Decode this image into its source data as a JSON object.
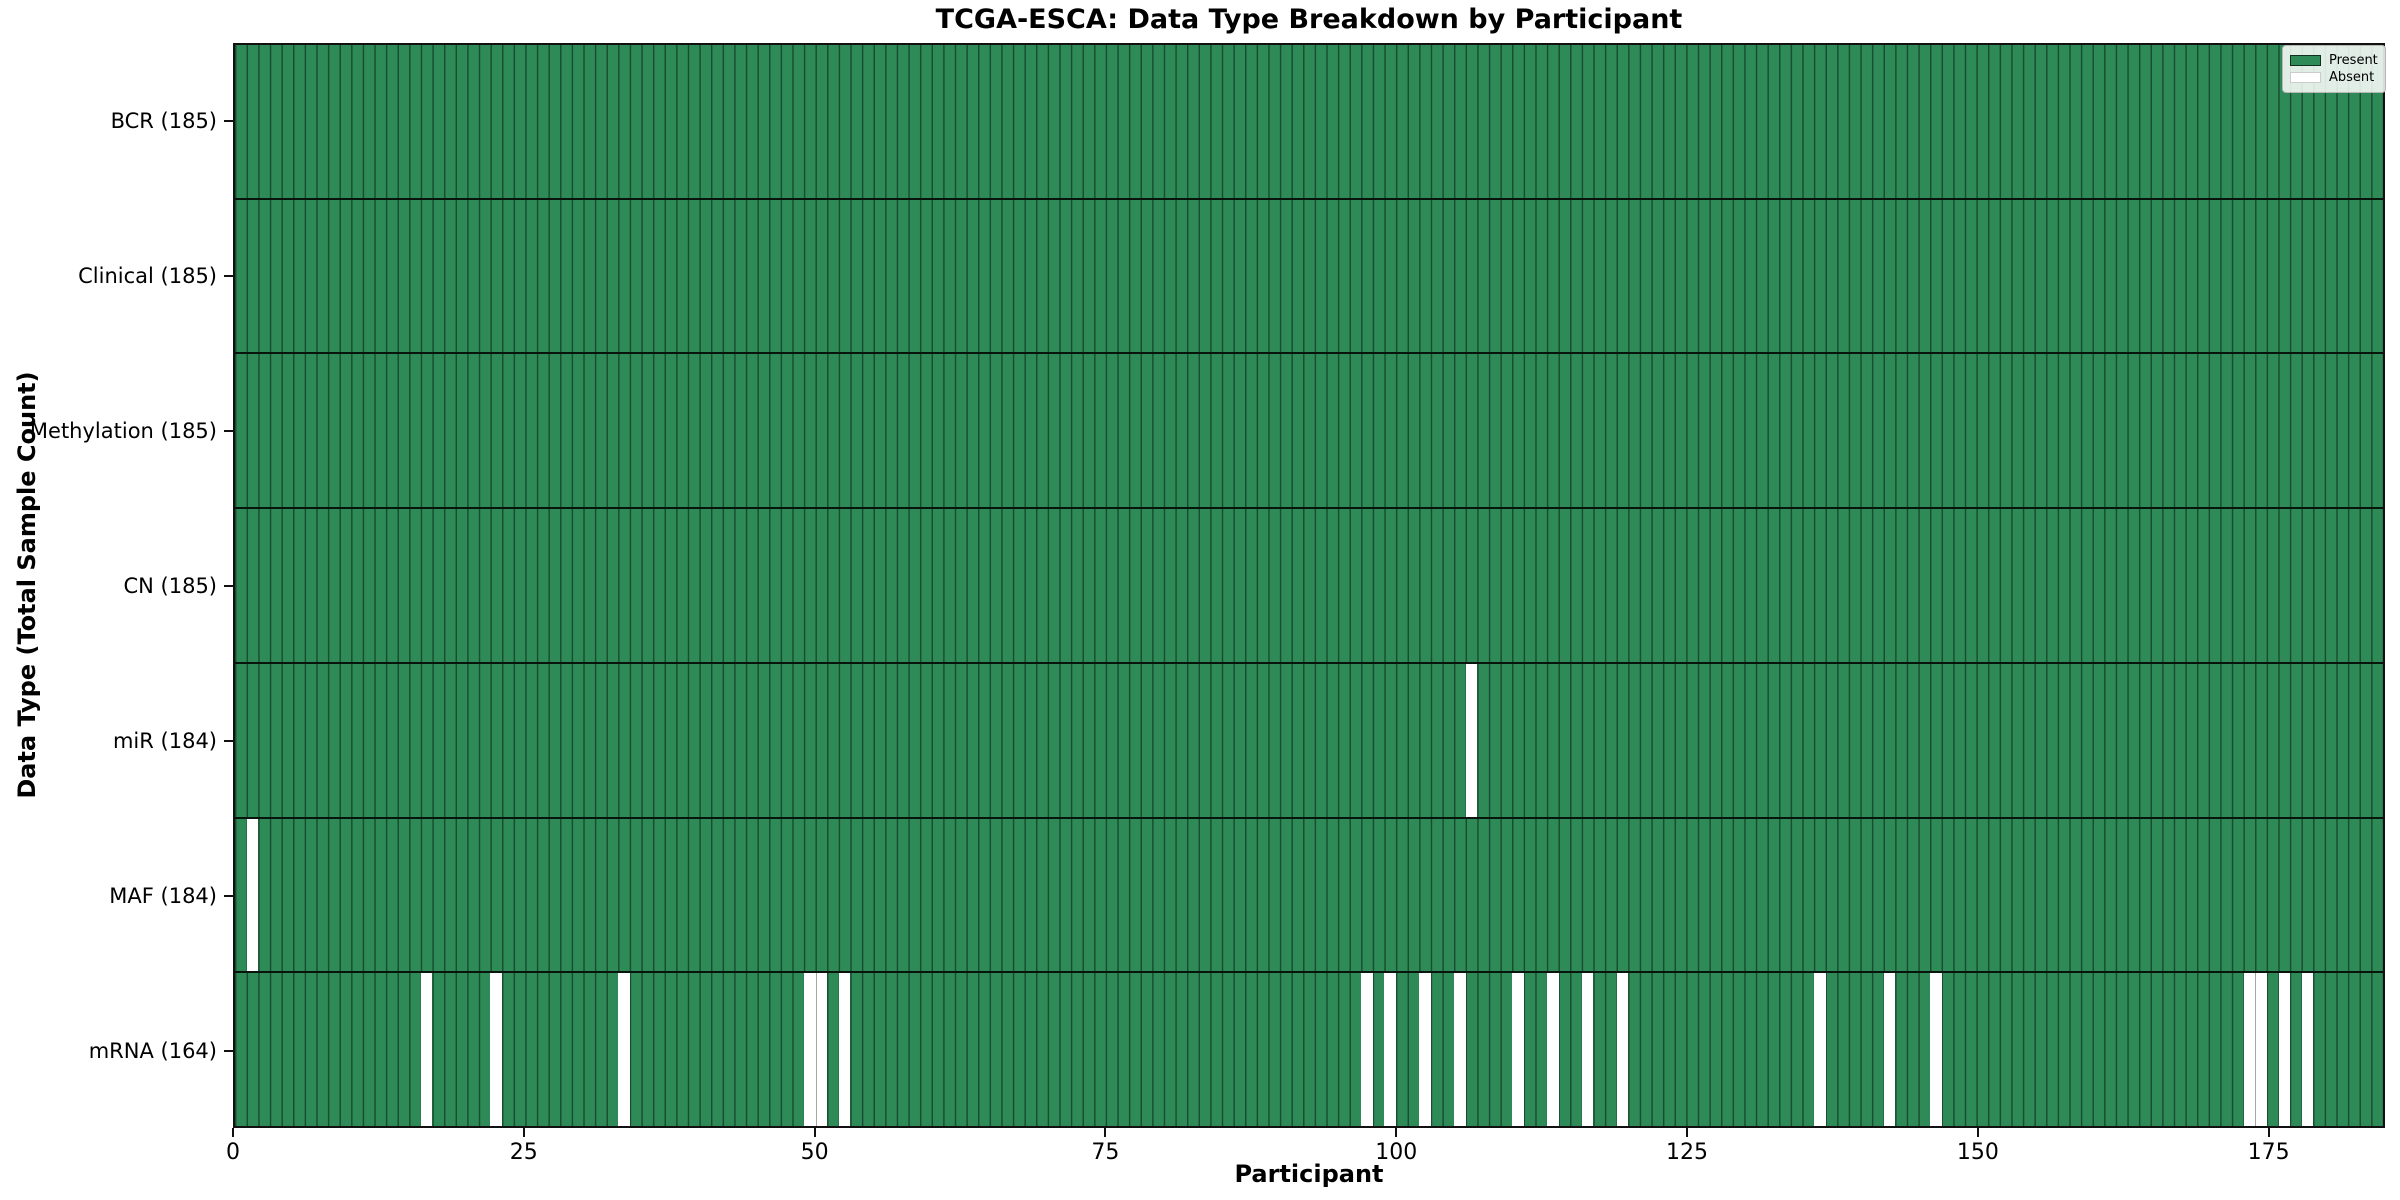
{
  "chart_data": {
    "type": "heatmap",
    "title": "TCGA-ESCA: Data Type Breakdown by Participant",
    "xlabel": "Participant",
    "ylabel": "Data Type (Total Sample Count)",
    "n_participants": 185,
    "x_ticks": [
      0,
      25,
      50,
      75,
      100,
      125,
      150,
      175
    ],
    "legend": {
      "position": "upper right",
      "present_label": "Present",
      "absent_label": "Absent"
    },
    "colors": {
      "present": "#2E8B57",
      "absent": "#FFFFFF",
      "bar_edge": "rgba(0,0,0,0.45)",
      "row_divider": "rgba(0,0,0,0.85)"
    },
    "rows": [
      {
        "label": "BCR",
        "count": 185,
        "display": "BCR (185)",
        "absent": []
      },
      {
        "label": "Clinical",
        "count": 185,
        "display": "Clinical (185)",
        "absent": []
      },
      {
        "label": "Methylation",
        "count": 185,
        "display": "Methylation (185)",
        "absent": []
      },
      {
        "label": "CN",
        "count": 185,
        "display": "CN (185)",
        "absent": []
      },
      {
        "label": "miR",
        "count": 184,
        "display": "miR (184)",
        "absent": [
          106
        ]
      },
      {
        "label": "MAF",
        "count": 184,
        "display": "MAF (184)",
        "absent": [
          1
        ]
      },
      {
        "label": "mRNA",
        "count": 164,
        "display": "mRNA (164)",
        "absent": [
          16,
          22,
          33,
          49,
          50,
          52,
          97,
          99,
          102,
          105,
          110,
          113,
          116,
          119,
          136,
          142,
          146,
          173,
          174,
          176,
          178
        ]
      }
    ]
  }
}
